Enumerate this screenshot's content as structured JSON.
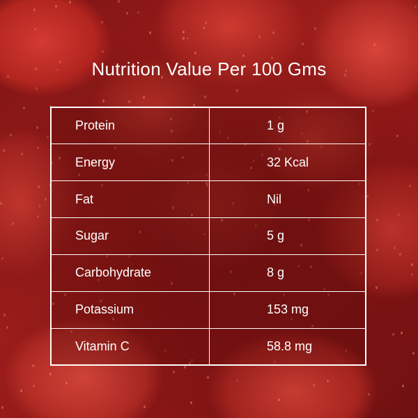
{
  "title": "Nutrition Value Per 100 Gms",
  "rows": [
    {
      "nutrient": "Protein",
      "value": "1 g"
    },
    {
      "nutrient": "Energy",
      "value": "32 Kcal"
    },
    {
      "nutrient": "Fat",
      "value": "Nil"
    },
    {
      "nutrient": "Sugar",
      "value": "5 g"
    },
    {
      "nutrient": "Carbohydrate",
      "value": "8 g"
    },
    {
      "nutrient": "Potassium",
      "value": "153 mg"
    },
    {
      "nutrient": "Vitamin C",
      "value": "58.8 mg"
    }
  ],
  "colors": {
    "text": "#ffffff",
    "border": "#ffffff",
    "background": "#9e1a1a"
  }
}
